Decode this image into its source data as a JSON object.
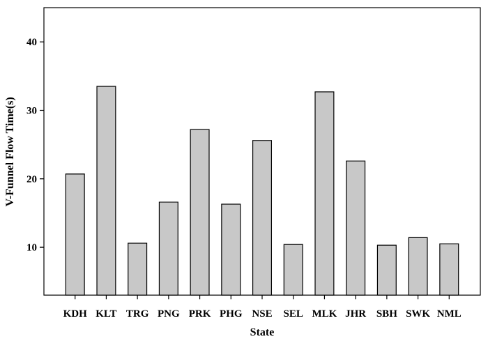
{
  "chart_data": {
    "type": "bar",
    "xlabel": "State",
    "ylabel": "V-Funnel Flow Time(s)",
    "categories": [
      "KDH",
      "KLT",
      "TRG",
      "PNG",
      "PRK",
      "PHG",
      "NSE",
      "SEL",
      "MLK",
      "JHR",
      "SBH",
      "SWK",
      "NML"
    ],
    "values": [
      20.7,
      33.5,
      10.6,
      16.6,
      27.2,
      16.3,
      25.6,
      10.4,
      32.7,
      22.6,
      10.3,
      11.4,
      10.5
    ],
    "ylim": [
      3,
      45
    ],
    "yticks": [
      10,
      20,
      30,
      40
    ],
    "bar_color": "#c8c8c8",
    "bar_edge_color": "#000000",
    "grid": false,
    "legend": "none"
  }
}
